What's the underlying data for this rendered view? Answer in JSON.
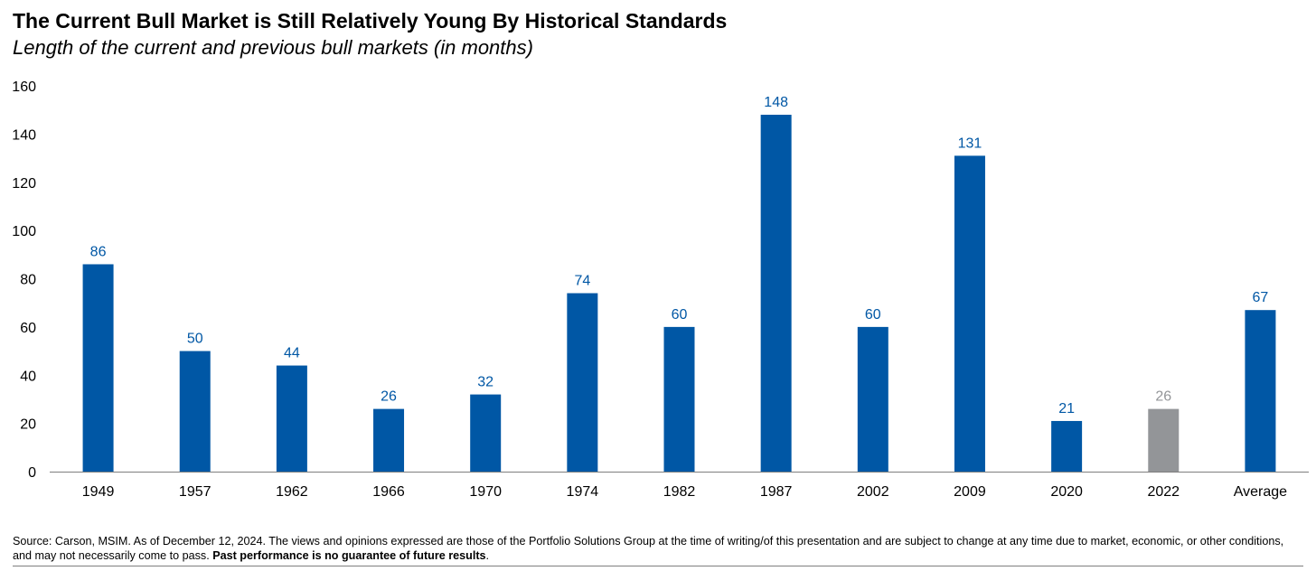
{
  "chart_data": {
    "type": "bar",
    "title": "The Current Bull Market is Still Relatively Young By Historical Standards",
    "subtitle": "Length of the current and previous bull markets (in months)",
    "categories": [
      "1949",
      "1957",
      "1962",
      "1966",
      "1970",
      "1974",
      "1982",
      "1987",
      "2002",
      "2009",
      "2020",
      "2022",
      "Average"
    ],
    "values": [
      86,
      50,
      44,
      26,
      32,
      74,
      60,
      148,
      60,
      131,
      21,
      26,
      67
    ],
    "bar_colors": [
      "#0057A5",
      "#0057A5",
      "#0057A5",
      "#0057A5",
      "#0057A5",
      "#0057A5",
      "#0057A5",
      "#0057A5",
      "#0057A5",
      "#0057A5",
      "#0057A5",
      "#939598",
      "#0057A5"
    ],
    "label_colors": [
      "#0057A5",
      "#0057A5",
      "#0057A5",
      "#0057A5",
      "#0057A5",
      "#0057A5",
      "#0057A5",
      "#0057A5",
      "#0057A5",
      "#0057A5",
      "#0057A5",
      "#939598",
      "#0057A5"
    ],
    "yticks": [
      0,
      20,
      40,
      60,
      80,
      100,
      120,
      140,
      160
    ],
    "ylim": [
      0,
      160
    ],
    "xlabel": "",
    "ylabel": "",
    "grid": false,
    "legend": "none"
  },
  "footnote": {
    "text": "Source: Carson, MSIM. As of December 12, 2024. The views and opinions expressed are those of the Portfolio Solutions Group at the time of writing/of this presentation and are subject to change at any time due to market, economic, or other conditions, and may not necessarily come to pass.",
    "bold": "Past performance is no guarantee of future results"
  }
}
